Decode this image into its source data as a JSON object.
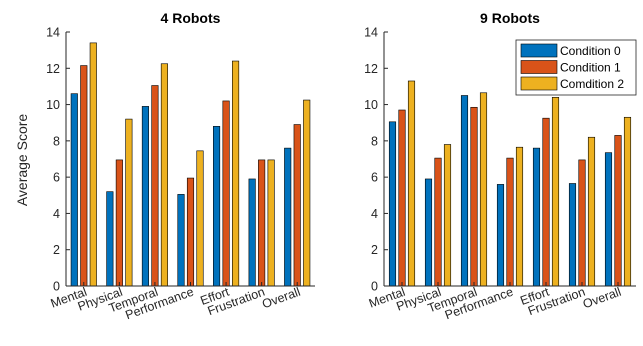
{
  "chart_data": {
    "ylabel": "Average Score",
    "colors": [
      "#0072BD",
      "#D95319",
      "#EDB120"
    ],
    "legend": {
      "position": "top-right",
      "entries": [
        "Condition 0",
        "Condition 1",
        "Comdition 2"
      ]
    },
    "charts": [
      {
        "type": "bar",
        "title": "4 Robots",
        "categories": [
          "Mental",
          "Physical",
          "Temporal",
          "Performance",
          "Effort",
          "Frustration",
          "Overall"
        ],
        "ylim": [
          0,
          14
        ],
        "yticks": [
          0,
          2,
          4,
          6,
          8,
          10,
          12,
          14
        ],
        "show_legend": false,
        "series": [
          {
            "name": "Condition 0",
            "values": [
              10.6,
              5.2,
              9.9,
              5.05,
              8.8,
              5.9,
              7.6
            ]
          },
          {
            "name": "Condition 1",
            "values": [
              12.15,
              6.95,
              11.05,
              5.95,
              10.2,
              6.95,
              8.9
            ]
          },
          {
            "name": "Comdition 2",
            "values": [
              13.4,
              9.2,
              12.25,
              7.45,
              12.4,
              6.95,
              10.25
            ]
          }
        ]
      },
      {
        "type": "bar",
        "title": "9 Robots",
        "categories": [
          "Mental",
          "Physical",
          "Temporal",
          "Performance",
          "Effort",
          "Frustration",
          "Overall"
        ],
        "ylim": [
          0,
          14
        ],
        "yticks": [
          0,
          2,
          4,
          6,
          8,
          10,
          12,
          14
        ],
        "show_legend": true,
        "series": [
          {
            "name": "Condition 0",
            "values": [
              9.05,
              5.9,
              10.5,
              5.6,
              7.6,
              5.65,
              7.35
            ]
          },
          {
            "name": "Condition 1",
            "values": [
              9.7,
              7.05,
              9.85,
              7.05,
              9.25,
              6.95,
              8.3
            ]
          },
          {
            "name": "Comdition 2",
            "values": [
              11.3,
              7.8,
              10.65,
              7.65,
              10.4,
              8.2,
              9.3
            ]
          }
        ]
      }
    ]
  }
}
